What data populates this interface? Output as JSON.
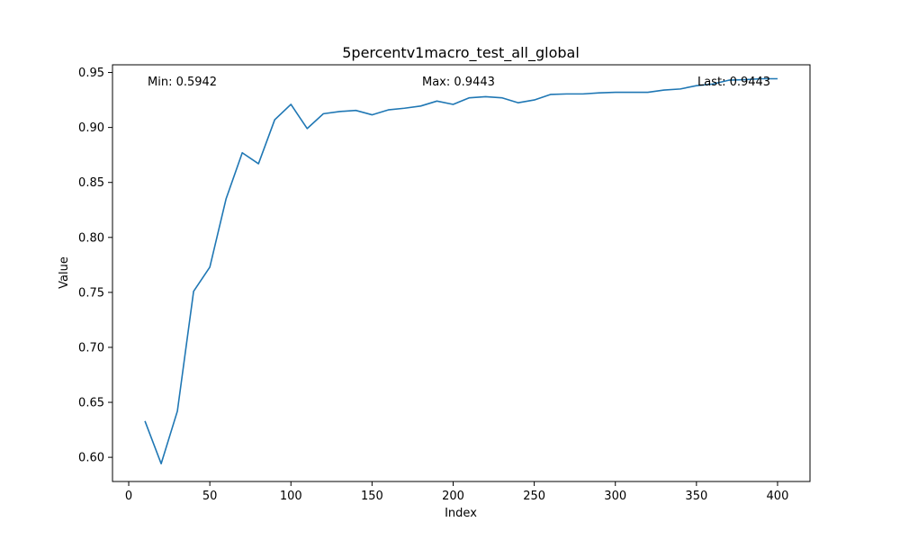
{
  "chart_data": {
    "type": "line",
    "title": "5percentv1macro_test_all_global",
    "xlabel": "Index",
    "ylabel": "Value",
    "xlim": [
      -10,
      420
    ],
    "ylim": [
      0.578,
      0.957
    ],
    "xticks": [
      "0",
      "50",
      "100",
      "150",
      "200",
      "250",
      "300",
      "350",
      "400"
    ],
    "yticks": [
      "0.60",
      "0.65",
      "0.70",
      "0.75",
      "0.80",
      "0.85",
      "0.90",
      "0.95"
    ],
    "grid": false,
    "annotations": {
      "min": "Min: 0.5942",
      "max": "Max: 0.9443",
      "last": "Last: 0.9443"
    },
    "series": [
      {
        "color": "#1f77b4",
        "x": [
          10,
          20,
          30,
          40,
          50,
          60,
          70,
          80,
          90,
          100,
          110,
          120,
          130,
          140,
          150,
          160,
          170,
          180,
          190,
          200,
          210,
          220,
          230,
          240,
          250,
          260,
          270,
          280,
          290,
          300,
          310,
          320,
          330,
          340,
          350,
          360,
          370,
          380,
          390,
          400
        ],
        "y": [
          0.633,
          0.5942,
          0.642,
          0.751,
          0.773,
          0.835,
          0.877,
          0.867,
          0.907,
          0.921,
          0.899,
          0.9125,
          0.9145,
          0.9155,
          0.9115,
          0.916,
          0.9175,
          0.9195,
          0.924,
          0.921,
          0.927,
          0.928,
          0.927,
          0.9225,
          0.925,
          0.93,
          0.9305,
          0.9305,
          0.9315,
          0.932,
          0.932,
          0.932,
          0.934,
          0.935,
          0.938,
          0.9395,
          0.943,
          0.9435,
          0.9443,
          0.9443
        ]
      }
    ]
  }
}
